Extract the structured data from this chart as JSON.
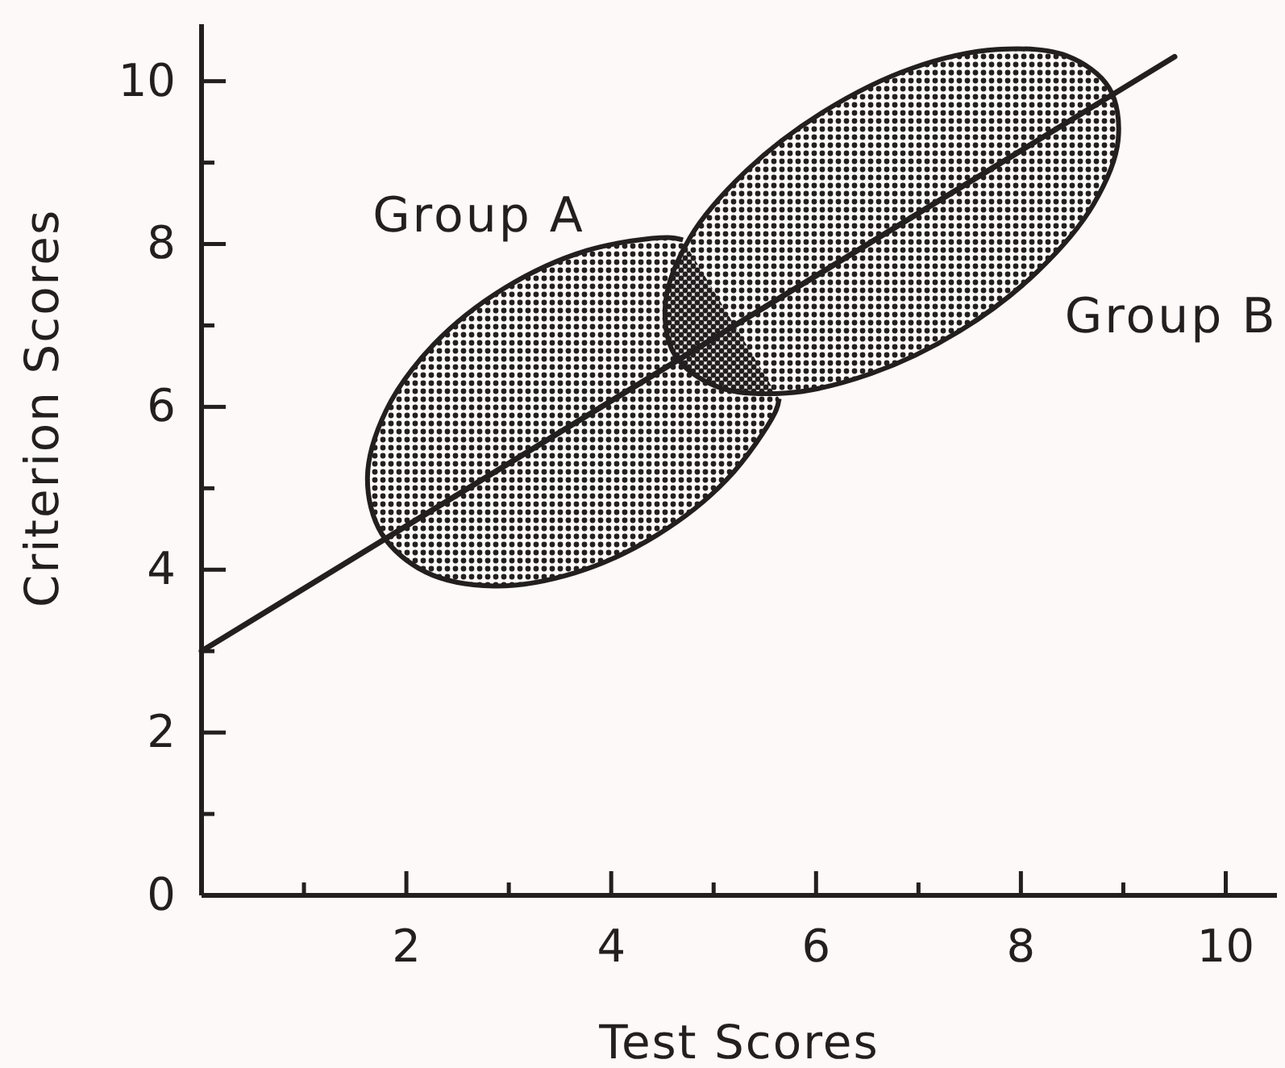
{
  "chart_data": {
    "type": "line",
    "xlabel": "Test Scores",
    "ylabel": "Criterion Scores",
    "xlim": [
      0,
      10.5
    ],
    "ylim": [
      0,
      10.7
    ],
    "xticks": [
      {
        "value": 1,
        "label": null
      },
      2,
      {
        "value": 3,
        "label": null
      },
      4,
      {
        "value": 5,
        "label": null
      },
      6,
      {
        "value": 7,
        "label": null
      },
      8,
      {
        "value": 9,
        "label": null
      },
      10
    ],
    "yticks": [
      0,
      {
        "value": 1,
        "label": null
      },
      2,
      {
        "value": 3,
        "label": null
      },
      4,
      {
        "value": 5,
        "label": null
      },
      6,
      {
        "value": 7,
        "label": null
      },
      8,
      {
        "value": 9,
        "label": null
      },
      10
    ],
    "series": [
      {
        "name": "Group A",
        "type": "area",
        "color": "#231f20",
        "x": [
          5.64,
          5.6,
          5.13,
          4.44,
          3.64,
          2.85,
          2.19,
          1.76,
          1.62,
          1.8,
          2.27,
          2.96,
          3.76,
          4.55,
          4.7
        ],
        "values": [
          6.1,
          5.93,
          5.11,
          4.42,
          3.96,
          3.8,
          3.97,
          4.44,
          5.13,
          5.95,
          6.77,
          7.46,
          7.92,
          8.08,
          8.05
        ]
      },
      {
        "name": "Group B",
        "type": "area",
        "color": "#231f20",
        "x": [
          8.86,
          8.95,
          8.71,
          8.16,
          7.4,
          6.54,
          5.71,
          5.03,
          4.62,
          4.53,
          4.77,
          5.32,
          6.08,
          6.94,
          7.77,
          8.45,
          8.86
        ],
        "values": [
          9.92,
          9.28,
          8.49,
          7.66,
          6.93,
          6.41,
          6.17,
          6.25,
          6.64,
          7.28,
          8.08,
          8.9,
          9.63,
          10.16,
          10.39,
          10.31,
          9.92
        ]
      },
      {
        "color": "#231f20",
        "x": [
          0,
          9.5
        ],
        "values": [
          3.0,
          10.3
        ]
      }
    ]
  }
}
